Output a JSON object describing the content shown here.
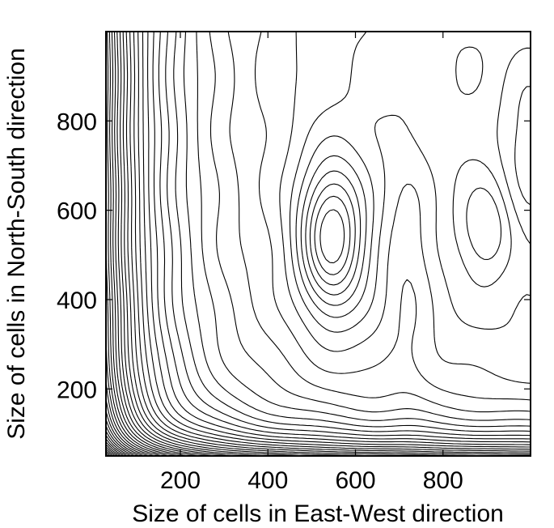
{
  "chart_data": {
    "type": "contour",
    "title": "",
    "xlabel": "Size of cells in East-West direction",
    "ylabel": "Size of cells in North-South direction",
    "xlim": [
      30,
      1000
    ],
    "ylim": [
      50,
      1000
    ],
    "xticks": [
      200,
      400,
      600,
      800
    ],
    "yticks": [
      200,
      400,
      600,
      800
    ],
    "grid": false,
    "legend": "none",
    "line_color": "#000000",
    "features": {
      "steep_gradient_left_edge": true,
      "steep_gradient_bottom_edge": true,
      "interior_maximum_center": [
        545,
        550
      ],
      "secondary_feature": [
        900,
        565
      ]
    }
  }
}
